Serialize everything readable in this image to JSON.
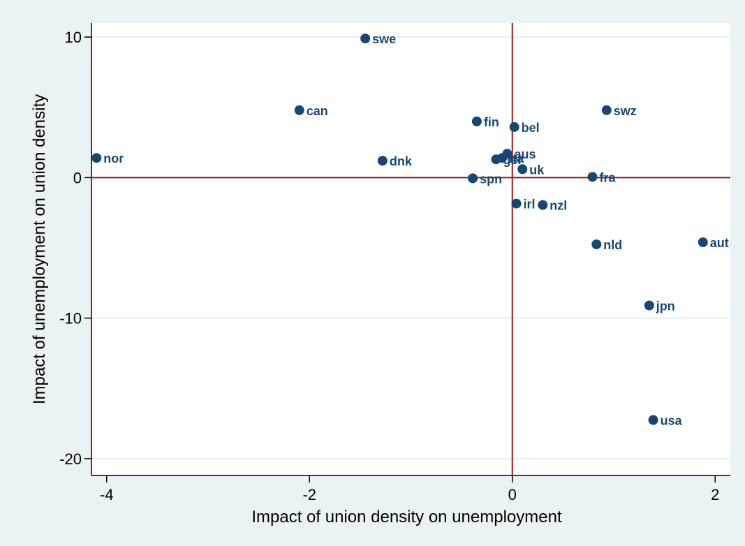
{
  "chart_data": {
    "type": "scatter",
    "title": "",
    "xlabel": "Impact of union density on unemployment",
    "ylabel": "Impact of unemployment on union density",
    "xlim": [
      -4.15,
      2.15
    ],
    "ylim": [
      -21.2,
      11.0
    ],
    "xticks": [
      -4,
      -2,
      0,
      2
    ],
    "yticks": [
      -20,
      -10,
      0,
      10
    ],
    "grid": "horizontal at y ticks",
    "reference_lines": {
      "x": 0,
      "y": 0,
      "color": "#8b1a1a"
    },
    "marker_color": "#1a476f",
    "points": [
      {
        "label": "swe",
        "x": -1.45,
        "y": 9.9
      },
      {
        "label": "can",
        "x": -2.1,
        "y": 4.8
      },
      {
        "label": "nor",
        "x": -4.1,
        "y": 1.4
      },
      {
        "label": "dnk",
        "x": -1.28,
        "y": 1.2
      },
      {
        "label": "fin",
        "x": -0.35,
        "y": 4.0
      },
      {
        "label": "bel",
        "x": 0.02,
        "y": 3.6
      },
      {
        "label": "swz",
        "x": 0.93,
        "y": 4.8
      },
      {
        "label": "aus",
        "x": -0.05,
        "y": 1.7
      },
      {
        "label": "ita",
        "x": -0.1,
        "y": 1.4
      },
      {
        "label": "ger",
        "x": -0.16,
        "y": 1.3
      },
      {
        "label": "uk",
        "x": 0.1,
        "y": 0.6
      },
      {
        "label": "spn",
        "x": -0.39,
        "y": -0.05
      },
      {
        "label": "fra",
        "x": 0.79,
        "y": 0.05
      },
      {
        "label": "irl",
        "x": 0.04,
        "y": -1.85
      },
      {
        "label": "nzl",
        "x": 0.3,
        "y": -1.95
      },
      {
        "label": "nld",
        "x": 0.83,
        "y": -4.75
      },
      {
        "label": "aut",
        "x": 1.88,
        "y": -4.6
      },
      {
        "label": "jpn",
        "x": 1.35,
        "y": -9.1
      },
      {
        "label": "usa",
        "x": 1.39,
        "y": -17.25
      }
    ]
  }
}
